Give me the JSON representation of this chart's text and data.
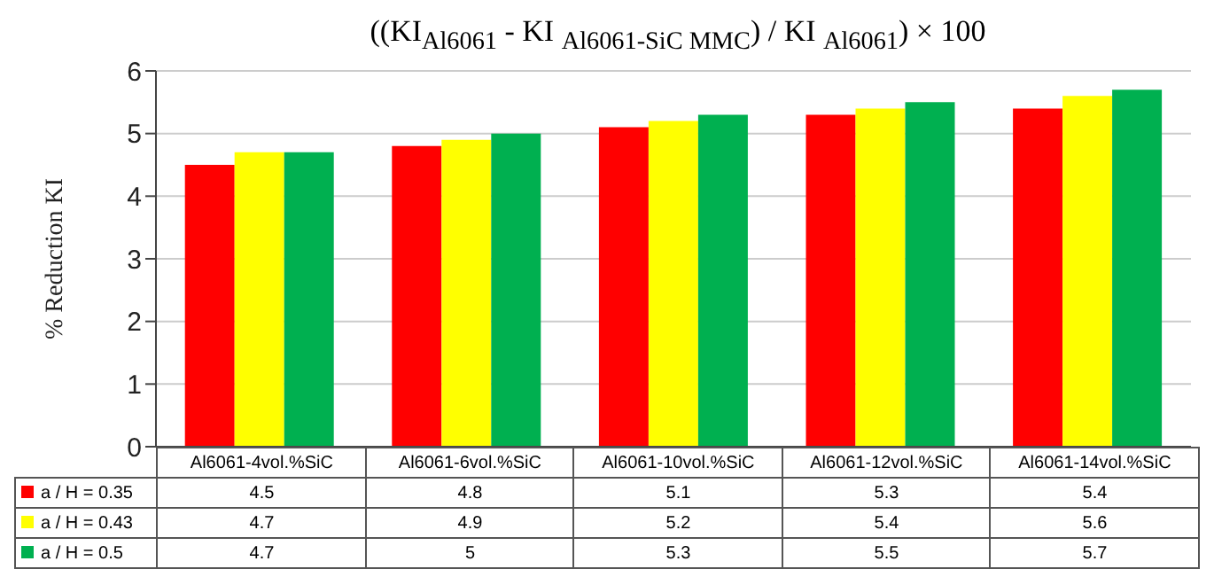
{
  "chart_data": {
    "type": "bar",
    "title": "((KI$_{Al6061}$ - KI $_{Al6061-SiC MMC}$) / KI $_{Al6061}$) × 100",
    "ylabel": "% Reduction KI",
    "categories": [
      "Al6061-4vol.%SiC",
      "Al6061-6vol.%SiC",
      "Al6061-10vol.%SiC",
      "Al6061-12vol.%SiC",
      "Al6061-14vol.%SiC"
    ],
    "series": [
      {
        "name": "a / H = 0.35",
        "color": "#ff0000",
        "values": [
          4.5,
          4.8,
          5.1,
          5.3,
          5.4
        ]
      },
      {
        "name": "a / H = 0.43",
        "color": "#ffff00",
        "values": [
          4.7,
          4.9,
          5.2,
          5.4,
          5.6
        ]
      },
      {
        "name": "a / H = 0.5",
        "color": "#00b050",
        "values": [
          4.7,
          5,
          5.3,
          5.5,
          5.7
        ]
      }
    ],
    "ylim": [
      0,
      6
    ],
    "yticks": [
      0,
      1,
      2,
      3,
      4,
      5,
      6
    ],
    "grid": "y",
    "legend": "bottom",
    "data_labels": true
  }
}
